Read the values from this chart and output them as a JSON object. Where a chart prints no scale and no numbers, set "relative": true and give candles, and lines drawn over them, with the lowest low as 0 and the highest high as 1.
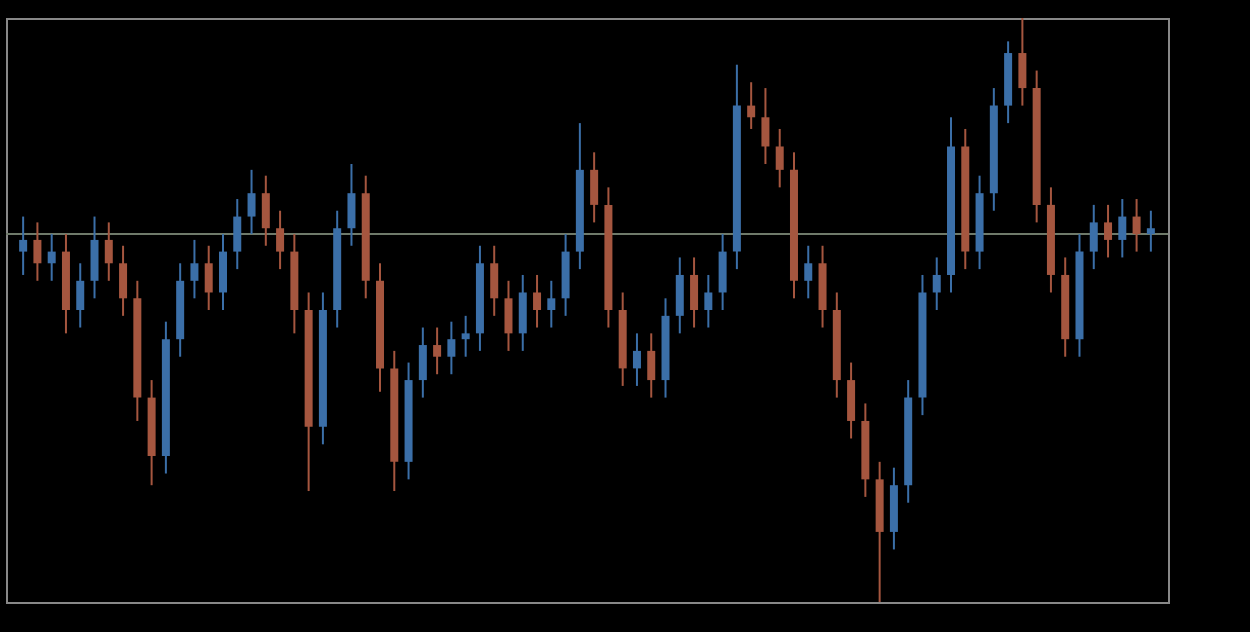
{
  "chart_data": {
    "type": "candlestick",
    "relative": true,
    "categories": [
      null,
      null,
      null,
      null,
      null,
      null,
      null,
      null,
      null,
      null,
      null,
      null,
      null,
      null,
      null,
      null,
      null,
      null,
      null,
      null,
      null,
      null,
      null,
      null,
      null,
      null,
      null,
      null,
      null,
      null,
      null,
      null,
      null,
      null,
      null,
      null,
      null,
      null,
      null,
      null,
      null,
      null,
      null,
      null,
      null,
      null,
      null,
      null,
      null,
      null,
      null,
      null,
      null,
      null,
      null,
      null,
      null,
      null,
      null,
      null,
      null,
      null,
      null,
      null,
      null,
      null,
      null,
      null,
      null,
      null,
      null,
      null,
      null,
      null,
      null,
      null,
      null,
      null,
      null,
      null
    ],
    "ohlc": [
      [
        0.6,
        0.66,
        0.56,
        0.62
      ],
      [
        0.62,
        0.65,
        0.55,
        0.58
      ],
      [
        0.58,
        0.63,
        0.55,
        0.6
      ],
      [
        0.6,
        0.63,
        0.46,
        0.5
      ],
      [
        0.5,
        0.58,
        0.47,
        0.55
      ],
      [
        0.55,
        0.66,
        0.52,
        0.62
      ],
      [
        0.62,
        0.65,
        0.55,
        0.58
      ],
      [
        0.58,
        0.61,
        0.49,
        0.52
      ],
      [
        0.52,
        0.55,
        0.31,
        0.35
      ],
      [
        0.35,
        0.38,
        0.2,
        0.25
      ],
      [
        0.25,
        0.48,
        0.22,
        0.45
      ],
      [
        0.45,
        0.58,
        0.42,
        0.55
      ],
      [
        0.55,
        0.62,
        0.52,
        0.58
      ],
      [
        0.58,
        0.61,
        0.5,
        0.53
      ],
      [
        0.53,
        0.63,
        0.5,
        0.6
      ],
      [
        0.6,
        0.69,
        0.57,
        0.66
      ],
      [
        0.66,
        0.74,
        0.63,
        0.7
      ],
      [
        0.7,
        0.73,
        0.61,
        0.64
      ],
      [
        0.64,
        0.67,
        0.57,
        0.6
      ],
      [
        0.6,
        0.63,
        0.46,
        0.5
      ],
      [
        0.5,
        0.53,
        0.19,
        0.3
      ],
      [
        0.3,
        0.53,
        0.27,
        0.5
      ],
      [
        0.5,
        0.67,
        0.47,
        0.64
      ],
      [
        0.64,
        0.75,
        0.61,
        0.7
      ],
      [
        0.7,
        0.73,
        0.52,
        0.55
      ],
      [
        0.55,
        0.58,
        0.36,
        0.4
      ],
      [
        0.4,
        0.43,
        0.19,
        0.24
      ],
      [
        0.24,
        0.41,
        0.21,
        0.38
      ],
      [
        0.38,
        0.47,
        0.35,
        0.44
      ],
      [
        0.44,
        0.47,
        0.39,
        0.42
      ],
      [
        0.42,
        0.48,
        0.39,
        0.45
      ],
      [
        0.45,
        0.49,
        0.42,
        0.46
      ],
      [
        0.46,
        0.61,
        0.43,
        0.58
      ],
      [
        0.58,
        0.61,
        0.49,
        0.52
      ],
      [
        0.52,
        0.55,
        0.43,
        0.46
      ],
      [
        0.46,
        0.56,
        0.43,
        0.53
      ],
      [
        0.53,
        0.56,
        0.47,
        0.5
      ],
      [
        0.5,
        0.55,
        0.47,
        0.52
      ],
      [
        0.52,
        0.63,
        0.49,
        0.6
      ],
      [
        0.6,
        0.82,
        0.57,
        0.74
      ],
      [
        0.74,
        0.77,
        0.65,
        0.68
      ],
      [
        0.68,
        0.71,
        0.47,
        0.5
      ],
      [
        0.5,
        0.53,
        0.37,
        0.4
      ],
      [
        0.4,
        0.46,
        0.37,
        0.43
      ],
      [
        0.43,
        0.46,
        0.35,
        0.38
      ],
      [
        0.38,
        0.52,
        0.35,
        0.49
      ],
      [
        0.49,
        0.59,
        0.46,
        0.56
      ],
      [
        0.56,
        0.59,
        0.47,
        0.5
      ],
      [
        0.5,
        0.56,
        0.47,
        0.53
      ],
      [
        0.53,
        0.63,
        0.5,
        0.6
      ],
      [
        0.6,
        0.92,
        0.57,
        0.85
      ],
      [
        0.85,
        0.89,
        0.81,
        0.83
      ],
      [
        0.83,
        0.88,
        0.75,
        0.78
      ],
      [
        0.78,
        0.81,
        0.71,
        0.74
      ],
      [
        0.74,
        0.77,
        0.52,
        0.55
      ],
      [
        0.55,
        0.61,
        0.52,
        0.58
      ],
      [
        0.58,
        0.61,
        0.47,
        0.5
      ],
      [
        0.5,
        0.53,
        0.35,
        0.38
      ],
      [
        0.38,
        0.41,
        0.28,
        0.31
      ],
      [
        0.31,
        0.34,
        0.18,
        0.21
      ],
      [
        0.21,
        0.24,
        0.0,
        0.12
      ],
      [
        0.12,
        0.23,
        0.09,
        0.2
      ],
      [
        0.2,
        0.38,
        0.17,
        0.35
      ],
      [
        0.35,
        0.56,
        0.32,
        0.53
      ],
      [
        0.53,
        0.59,
        0.5,
        0.56
      ],
      [
        0.56,
        0.83,
        0.53,
        0.78
      ],
      [
        0.78,
        0.81,
        0.57,
        0.6
      ],
      [
        0.6,
        0.73,
        0.57,
        0.7
      ],
      [
        0.7,
        0.88,
        0.67,
        0.85
      ],
      [
        0.85,
        0.96,
        0.82,
        0.94
      ],
      [
        0.94,
        1.0,
        0.85,
        0.88
      ],
      [
        0.88,
        0.91,
        0.65,
        0.68
      ],
      [
        0.68,
        0.71,
        0.53,
        0.56
      ],
      [
        0.56,
        0.59,
        0.42,
        0.45
      ],
      [
        0.45,
        0.63,
        0.42,
        0.6
      ],
      [
        0.6,
        0.68,
        0.57,
        0.65
      ],
      [
        0.65,
        0.68,
        0.59,
        0.62
      ],
      [
        0.62,
        0.69,
        0.59,
        0.66
      ],
      [
        0.66,
        0.69,
        0.6,
        0.63
      ],
      [
        0.63,
        0.67,
        0.6,
        0.64
      ]
    ],
    "ref_lines": [
      {
        "axis": "y",
        "value": 0.63,
        "color": "#6f7a6a"
      }
    ],
    "grid": false
  }
}
